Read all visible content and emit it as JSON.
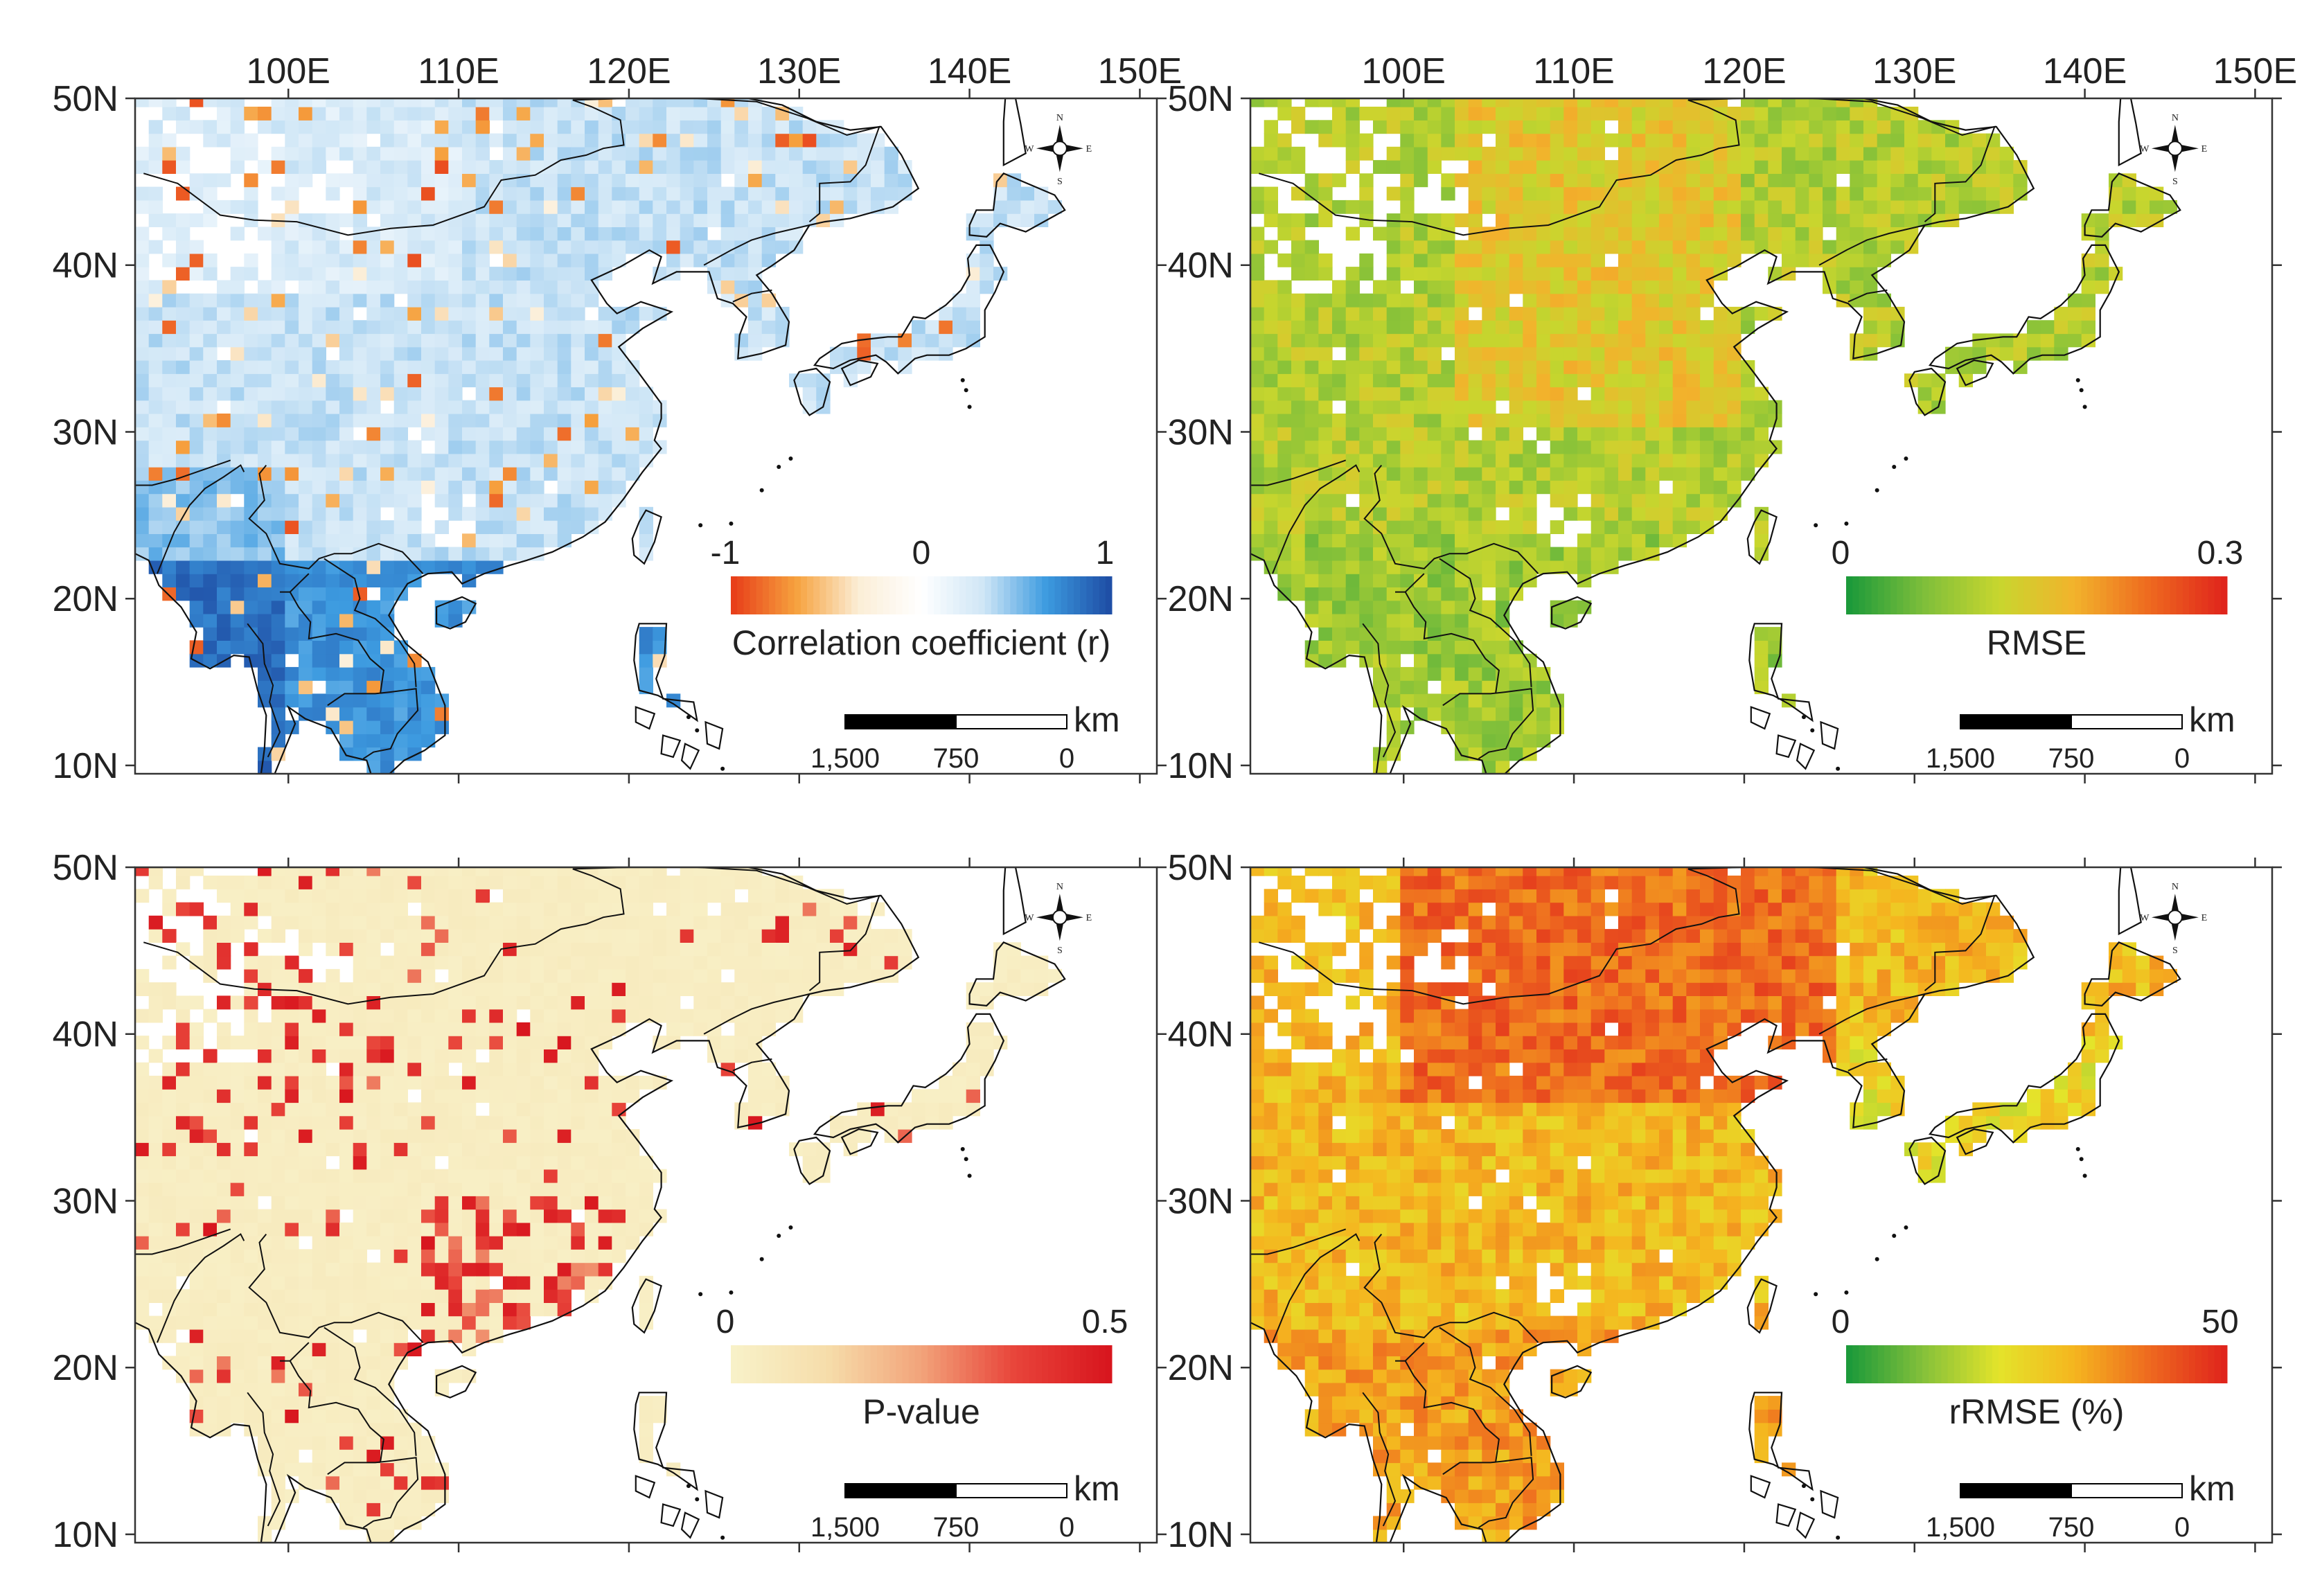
{
  "figure": {
    "lon_labels": [
      "100E",
      "110E",
      "120E",
      "130E",
      "140E",
      "150E"
    ],
    "lat_labels": [
      "50N",
      "40N",
      "30N",
      "20N",
      "10N"
    ],
    "scale_bar": {
      "unit": "km",
      "labels": [
        "1,500",
        "750",
        "0"
      ]
    },
    "compass": {
      "n": "N",
      "s": "S",
      "e": "E",
      "w": "W"
    }
  },
  "panels": [
    {
      "id": "correlation",
      "colorbar_title": "Correlation coefficient (r)",
      "colorbar_min": "-1",
      "colorbar_mid": "0",
      "colorbar_max": "1",
      "colormap": [
        "#e8401a",
        "#f6a23e",
        "#fbeed7",
        "#ffffff",
        "#cfe6f6",
        "#3d9be0",
        "#1f4fa6"
      ],
      "blank_color": "#ffffff"
    },
    {
      "id": "rmse",
      "colorbar_title": "RMSE",
      "colorbar_min": "0",
      "colorbar_max": "0.3",
      "colormap": [
        "#1c9a3a",
        "#7fbf3a",
        "#c8d62e",
        "#f2b32c",
        "#ee6a1f",
        "#e0251c"
      ],
      "blank_color": "#ffffff"
    },
    {
      "id": "pvalue",
      "colorbar_title": "P-value",
      "colorbar_min": "0",
      "colorbar_max": "0.5",
      "colormap": [
        "#f8f1c8",
        "#f6ddaa",
        "#f2a37a",
        "#e8443a",
        "#d8161e"
      ],
      "blank_color": "#ffffff"
    },
    {
      "id": "rrmse",
      "colorbar_title": "rRMSE (%)",
      "colorbar_min": "0",
      "colorbar_max": "50",
      "colormap": [
        "#1c9a3a",
        "#86c13a",
        "#e4e42a",
        "#f5b51f",
        "#ee6a1f",
        "#e0251c"
      ],
      "blank_color": "#ffffff"
    }
  ]
}
